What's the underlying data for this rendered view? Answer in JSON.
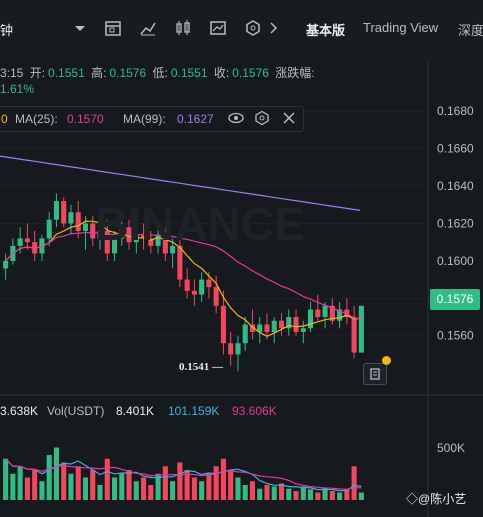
{
  "toolbar": {
    "interval_label": "钟",
    "tab_basic": "基本版",
    "tab_tradingview": "Trading View",
    "tab_depth": "深度"
  },
  "ohlc": {
    "time": "3:15",
    "open_label": "开:",
    "open": "0.1551",
    "high_label": "高:",
    "high": "0.1576",
    "low_label": "低:",
    "low": "0.1551",
    "close_label": "收:",
    "close": "0.1576",
    "change_label": "涨跌幅:",
    "change": "1.61%"
  },
  "ma": {
    "ma7_value": "0",
    "ma25_label": "MA(25):",
    "ma25_value": "0.1570",
    "ma99_label": "MA(99):",
    "ma99_value": "0.1627"
  },
  "volume": {
    "vol_base": "3.638K",
    "vol_usdt_label": "Vol(USDT)",
    "vol_usdt": "8.401K",
    "ma5": "101.159K",
    "ma10": "93.606K",
    "axis_label": "500K"
  },
  "current_price": "0.1576",
  "low_marker": "0.1541",
  "watermark": "@陈小艺",
  "colors": {
    "up": "#2ebd85",
    "down": "#f6465d",
    "ma7": "#f0b90b",
    "ma25": "#e6399b",
    "ma99": "#9f7cf0",
    "vol_ma5": "#38b2e8"
  },
  "chart_data": {
    "type": "candlestick",
    "y_ticks": [
      "0.1680",
      "0.1660",
      "0.1640",
      "0.1620",
      "0.1600",
      "0.1580",
      "0.1560"
    ],
    "ylim": [
      0.1531,
      0.1686
    ],
    "candles": [
      [
        0.1596,
        0.1604,
        0.159,
        0.16
      ],
      [
        0.16,
        0.1612,
        0.1598,
        0.1608
      ],
      [
        0.1608,
        0.1618,
        0.1604,
        0.1612
      ],
      [
        0.1612,
        0.162,
        0.1606,
        0.161
      ],
      [
        0.161,
        0.1616,
        0.16,
        0.1604
      ],
      [
        0.1604,
        0.1614,
        0.16,
        0.1612
      ],
      [
        0.1612,
        0.1626,
        0.1608,
        0.1622
      ],
      [
        0.1622,
        0.1636,
        0.1618,
        0.1632
      ],
      [
        0.1632,
        0.1634,
        0.1618,
        0.162
      ],
      [
        0.162,
        0.163,
        0.1614,
        0.1626
      ],
      [
        0.1626,
        0.1632,
        0.1612,
        0.1616
      ],
      [
        0.1616,
        0.1624,
        0.1606,
        0.162
      ],
      [
        0.162,
        0.1624,
        0.1608,
        0.1612
      ],
      [
        0.1612,
        0.162,
        0.1606,
        0.1616
      ],
      [
        0.1616,
        0.1622,
        0.16,
        0.1604
      ],
      [
        0.1604,
        0.1616,
        0.16,
        0.1612
      ],
      [
        0.1612,
        0.1624,
        0.1608,
        0.1618
      ],
      [
        0.1618,
        0.1622,
        0.1606,
        0.161
      ],
      [
        0.161,
        0.1618,
        0.1604,
        0.1614
      ],
      [
        0.1614,
        0.162,
        0.1606,
        0.1612
      ],
      [
        0.1612,
        0.1616,
        0.1604,
        0.1608
      ],
      [
        0.1608,
        0.1618,
        0.1604,
        0.1614
      ],
      [
        0.1614,
        0.1618,
        0.16,
        0.1604
      ],
      [
        0.1604,
        0.1612,
        0.1596,
        0.1608
      ],
      [
        0.1608,
        0.1612,
        0.1586,
        0.159
      ],
      [
        0.159,
        0.1596,
        0.158,
        0.1584
      ],
      [
        0.1584,
        0.159,
        0.1576,
        0.1582
      ],
      [
        0.1582,
        0.1594,
        0.1578,
        0.159
      ],
      [
        0.159,
        0.1594,
        0.158,
        0.1586
      ],
      [
        0.1586,
        0.1592,
        0.1572,
        0.1576
      ],
      [
        0.1576,
        0.1584,
        0.155,
        0.1556
      ],
      [
        0.1556,
        0.1562,
        0.1544,
        0.155
      ],
      [
        0.155,
        0.156,
        0.1541,
        0.1556
      ],
      [
        0.1556,
        0.157,
        0.1552,
        0.1566
      ],
      [
        0.1566,
        0.1574,
        0.1558,
        0.1562
      ],
      [
        0.1562,
        0.157,
        0.1556,
        0.1566
      ],
      [
        0.1566,
        0.1572,
        0.1558,
        0.1562
      ],
      [
        0.1562,
        0.157,
        0.1556,
        0.1568
      ],
      [
        0.1568,
        0.1572,
        0.156,
        0.1564
      ],
      [
        0.1564,
        0.1574,
        0.156,
        0.157
      ],
      [
        0.157,
        0.1574,
        0.156,
        0.1562
      ],
      [
        0.1562,
        0.1568,
        0.1556,
        0.1564
      ],
      [
        0.1564,
        0.1578,
        0.1562,
        0.1574
      ],
      [
        0.1574,
        0.1582,
        0.1568,
        0.157
      ],
      [
        0.157,
        0.1578,
        0.1564,
        0.1576
      ],
      [
        0.1576,
        0.158,
        0.1566,
        0.1568
      ],
      [
        0.1568,
        0.1578,
        0.1564,
        0.1574
      ],
      [
        0.1574,
        0.158,
        0.1566,
        0.157
      ],
      [
        0.157,
        0.1576,
        0.1548,
        0.1551
      ],
      [
        0.1551,
        0.1576,
        0.1551,
        0.1576
      ]
    ],
    "ma99": [
      0.1656,
      0.1655,
      0.1654,
      0.1653,
      0.1652,
      0.1651,
      0.165,
      0.1649,
      0.1648,
      0.1647,
      0.1646,
      0.1645,
      0.1644,
      0.1643,
      0.1642,
      0.1641,
      0.164,
      0.1639,
      0.1638,
      0.1637,
      0.1636,
      0.1635,
      0.1634,
      0.1633,
      0.1632,
      0.1631,
      0.163,
      0.1629,
      0.1628,
      0.1627
    ],
    "volumes": [
      0.55,
      0.35,
      0.45,
      0.3,
      0.4,
      0.25,
      0.6,
      0.7,
      0.5,
      0.35,
      0.45,
      0.3,
      0.4,
      0.2,
      0.55,
      0.3,
      0.35,
      0.4,
      0.25,
      0.3,
      0.2,
      0.35,
      0.45,
      0.25,
      0.5,
      0.4,
      0.3,
      0.25,
      0.35,
      0.45,
      0.55,
      0.4,
      0.3,
      0.2,
      0.25,
      0.15,
      0.2,
      0.18,
      0.22,
      0.15,
      0.12,
      0.18,
      0.14,
      0.1,
      0.16,
      0.12,
      0.1,
      0.14,
      0.45,
      0.1
    ],
    "vol_max_label": "500K"
  }
}
